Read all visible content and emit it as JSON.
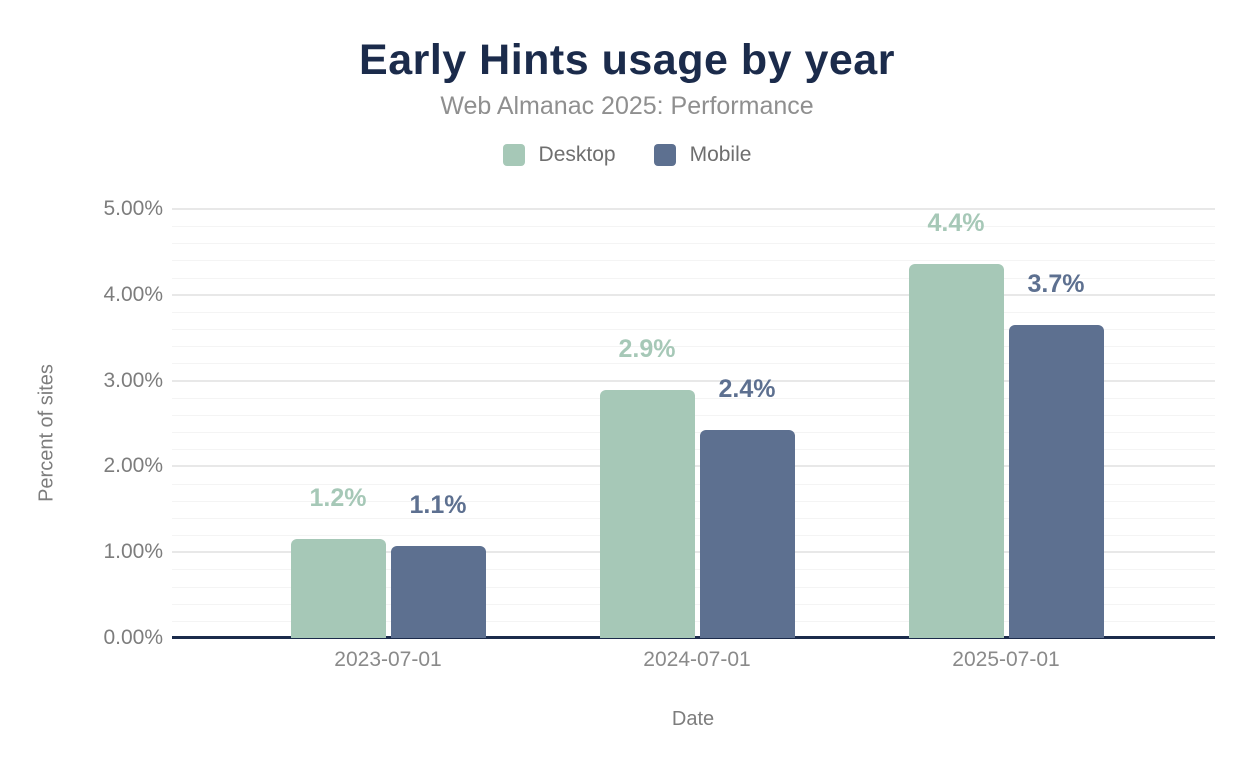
{
  "chart_data": {
    "type": "bar",
    "title": "Early Hints usage by year",
    "subtitle": "Web Almanac 2025: Performance",
    "xlabel": "Date",
    "ylabel": "Percent of sites",
    "categories": [
      "2023-07-01",
      "2024-07-01",
      "2025-07-01"
    ],
    "series": [
      {
        "name": "Desktop",
        "color": "#a6c8b7",
        "values": [
          1.15,
          2.89,
          4.36
        ],
        "labels": [
          "1.2%",
          "2.9%",
          "4.4%"
        ]
      },
      {
        "name": "Mobile",
        "color": "#5d7090",
        "values": [
          1.07,
          2.42,
          3.65
        ],
        "labels": [
          "1.1%",
          "2.4%",
          "3.7%"
        ]
      }
    ],
    "ylim": [
      0,
      5
    ],
    "y_ticks": [
      {
        "value": 0,
        "label": "0.00%"
      },
      {
        "value": 1,
        "label": "1.00%"
      },
      {
        "value": 2,
        "label": "2.00%"
      },
      {
        "value": 3,
        "label": "3.00%"
      },
      {
        "value": 4,
        "label": "4.00%"
      },
      {
        "value": 5,
        "label": "5.00%"
      }
    ],
    "y_minor_step": 0.2,
    "y_major_step": 1,
    "grid": true,
    "legend_position": "top"
  },
  "colors": {
    "title_text": "#1b2b4b",
    "subtitle_text": "#8f8f8f",
    "legend_text": "#6f6f6f",
    "axis_line": "#1b2b4b",
    "grid_major": "#e8e8e8",
    "grid_minor": "#f4f4f4",
    "y_tick_text": "#7d7d7d",
    "x_tick_text": "#8a8a8a",
    "desktop_series": "#a6c8b7",
    "mobile_series": "#5d7090"
  }
}
